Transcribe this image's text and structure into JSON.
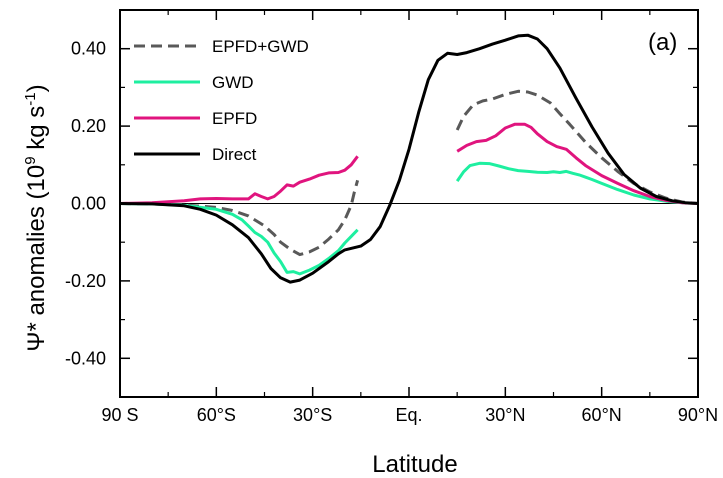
{
  "chart_data": {
    "type": "line",
    "panel_label": "(a)",
    "xlabel": "Latitude",
    "ylabel": "Ψ* anomalies (10⁹ kg s⁻¹)",
    "ylabel_main": "Ψ* anomalies (10",
    "ylabel_exp1": "9",
    "ylabel_unit": " kg s",
    "ylabel_exp2": "-1",
    "ylabel_close": ")",
    "xlim": [
      -90,
      90
    ],
    "ylim": [
      -0.5,
      0.5
    ],
    "x_ticks": [
      {
        "value": -90,
        "label": "90  S"
      },
      {
        "value": -60,
        "label": "60°S"
      },
      {
        "value": -30,
        "label": "30°S"
      },
      {
        "value": 0,
        "label": "Eq."
      },
      {
        "value": 30,
        "label": "30°N"
      },
      {
        "value": 60,
        "label": "60°N"
      },
      {
        "value": 90,
        "label": "90°N"
      }
    ],
    "y_ticks": [
      {
        "value": 0.4,
        "label": "0.40"
      },
      {
        "value": 0.2,
        "label": "0.20"
      },
      {
        "value": 0.0,
        "label": "0.00"
      },
      {
        "value": -0.2,
        "label": "-0.20"
      },
      {
        "value": -0.4,
        "label": "-0.40"
      }
    ],
    "zero_line": true,
    "legend_position": "top-left",
    "series": [
      {
        "name": "EPFD+GWD",
        "color": "#595959",
        "dash": "dashed",
        "segments": [
          [
            [
              -90,
              0
            ],
            [
              -80,
              -0.001
            ],
            [
              -70,
              -0.004
            ],
            [
              -60,
              -0.01
            ],
            [
              -55,
              -0.018
            ],
            [
              -50,
              -0.032
            ],
            [
              -45,
              -0.058
            ],
            [
              -42,
              -0.08
            ],
            [
              -40,
              -0.1
            ],
            [
              -37,
              -0.118
            ],
            [
              -34,
              -0.132
            ],
            [
              -31,
              -0.125
            ],
            [
              -28,
              -0.113
            ],
            [
              -25,
              -0.092
            ],
            [
              -22,
              -0.068
            ],
            [
              -20,
              -0.042
            ],
            [
              -18,
              -0.005
            ],
            [
              -17,
              0.03
            ],
            [
              -16,
              0.06
            ]
          ],
          [
            [
              15,
              0.19
            ],
            [
              17,
              0.225
            ],
            [
              20,
              0.255
            ],
            [
              23,
              0.265
            ],
            [
              26,
              0.27
            ],
            [
              30,
              0.282
            ],
            [
              34,
              0.29
            ],
            [
              37,
              0.288
            ],
            [
              40,
              0.28
            ],
            [
              44,
              0.26
            ],
            [
              47,
              0.232
            ],
            [
              50,
              0.205
            ],
            [
              55,
              0.158
            ],
            [
              60,
              0.118
            ],
            [
              65,
              0.083
            ],
            [
              70,
              0.052
            ],
            [
              75,
              0.03
            ],
            [
              80,
              0.014
            ],
            [
              85,
              0.004
            ],
            [
              90,
              0
            ]
          ]
        ]
      },
      {
        "name": "GWD",
        "color": "#1EEFA0",
        "dash": "solid",
        "segments": [
          [
            [
              -90,
              0
            ],
            [
              -80,
              -0.001
            ],
            [
              -70,
              -0.005
            ],
            [
              -60,
              -0.015
            ],
            [
              -55,
              -0.028
            ],
            [
              -52,
              -0.042
            ],
            [
              -50,
              -0.058
            ],
            [
              -48,
              -0.075
            ],
            [
              -46,
              -0.085
            ],
            [
              -44,
              -0.1
            ],
            [
              -42,
              -0.128
            ],
            [
              -40,
              -0.15
            ],
            [
              -38,
              -0.178
            ],
            [
              -36,
              -0.176
            ],
            [
              -34,
              -0.182
            ],
            [
              -31,
              -0.172
            ],
            [
              -28,
              -0.16
            ],
            [
              -25,
              -0.142
            ],
            [
              -22,
              -0.122
            ],
            [
              -20,
              -0.102
            ],
            [
              -18,
              -0.085
            ],
            [
              -16,
              -0.068
            ]
          ],
          [
            [
              15,
              0.058
            ],
            [
              17,
              0.082
            ],
            [
              19,
              0.098
            ],
            [
              22,
              0.104
            ],
            [
              25,
              0.103
            ],
            [
              28,
              0.097
            ],
            [
              31,
              0.09
            ],
            [
              34,
              0.085
            ],
            [
              37,
              0.083
            ],
            [
              40,
              0.081
            ],
            [
              43,
              0.08
            ],
            [
              45,
              0.082
            ],
            [
              47,
              0.08
            ],
            [
              49,
              0.083
            ],
            [
              51,
              0.078
            ],
            [
              53,
              0.074
            ],
            [
              55,
              0.068
            ],
            [
              57,
              0.062
            ],
            [
              60,
              0.052
            ],
            [
              65,
              0.036
            ],
            [
              70,
              0.022
            ],
            [
              75,
              0.012
            ],
            [
              80,
              0.006
            ],
            [
              85,
              0.002
            ],
            [
              90,
              0
            ]
          ]
        ]
      },
      {
        "name": "EPFD",
        "color": "#E0147E",
        "dash": "solid",
        "segments": [
          [
            [
              -90,
              0
            ],
            [
              -80,
              0.002
            ],
            [
              -70,
              0.007
            ],
            [
              -65,
              0.012
            ],
            [
              -60,
              0.013
            ],
            [
              -55,
              0.012
            ],
            [
              -50,
              0.012
            ],
            [
              -48,
              0.025
            ],
            [
              -46,
              0.018
            ],
            [
              -44,
              0.012
            ],
            [
              -42,
              0.018
            ],
            [
              -40,
              0.032
            ],
            [
              -38,
              0.048
            ],
            [
              -36,
              0.045
            ],
            [
              -34,
              0.055
            ],
            [
              -31,
              0.063
            ],
            [
              -28,
              0.073
            ],
            [
              -25,
              0.079
            ],
            [
              -22,
              0.08
            ],
            [
              -20,
              0.086
            ],
            [
              -18,
              0.1
            ],
            [
              -16,
              0.122
            ]
          ],
          [
            [
              15,
              0.135
            ],
            [
              18,
              0.15
            ],
            [
              21,
              0.16
            ],
            [
              24,
              0.163
            ],
            [
              27,
              0.175
            ],
            [
              30,
              0.195
            ],
            [
              33,
              0.205
            ],
            [
              36,
              0.205
            ],
            [
              38,
              0.197
            ],
            [
              40,
              0.18
            ],
            [
              43,
              0.16
            ],
            [
              46,
              0.147
            ],
            [
              49,
              0.14
            ],
            [
              52,
              0.118
            ],
            [
              55,
              0.098
            ],
            [
              60,
              0.072
            ],
            [
              65,
              0.052
            ],
            [
              70,
              0.033
            ],
            [
              75,
              0.018
            ],
            [
              80,
              0.008
            ],
            [
              85,
              0.002
            ],
            [
              90,
              0
            ]
          ]
        ]
      },
      {
        "name": "Direct",
        "color": "#000000",
        "dash": "solid",
        "segments": [
          [
            [
              -90,
              0
            ],
            [
              -80,
              -0.001
            ],
            [
              -70,
              -0.006
            ],
            [
              -65,
              -0.015
            ],
            [
              -60,
              -0.03
            ],
            [
              -55,
              -0.055
            ],
            [
              -50,
              -0.088
            ],
            [
              -46,
              -0.13
            ],
            [
              -43,
              -0.168
            ],
            [
              -40,
              -0.192
            ],
            [
              -37,
              -0.203
            ],
            [
              -34,
              -0.198
            ],
            [
              -30,
              -0.18
            ],
            [
              -25,
              -0.15
            ],
            [
              -22,
              -0.13
            ],
            [
              -20,
              -0.12
            ],
            [
              -15,
              -0.11
            ],
            [
              -12,
              -0.093
            ],
            [
              -9,
              -0.06
            ],
            [
              -6,
              -0.005
            ],
            [
              -3,
              0.06
            ],
            [
              0,
              0.14
            ],
            [
              3,
              0.235
            ],
            [
              6,
              0.32
            ],
            [
              9,
              0.37
            ],
            [
              12,
              0.388
            ],
            [
              15,
              0.385
            ],
            [
              18,
              0.39
            ],
            [
              22,
              0.4
            ],
            [
              26,
              0.412
            ],
            [
              30,
              0.422
            ],
            [
              34,
              0.433
            ],
            [
              37,
              0.435
            ],
            [
              40,
              0.425
            ],
            [
              43,
              0.4
            ],
            [
              47,
              0.35
            ],
            [
              52,
              0.272
            ],
            [
              57,
              0.198
            ],
            [
              62,
              0.13
            ],
            [
              67,
              0.075
            ],
            [
              72,
              0.04
            ],
            [
              77,
              0.018
            ],
            [
              82,
              0.007
            ],
            [
              86,
              0.002
            ],
            [
              90,
              0
            ]
          ]
        ]
      }
    ]
  }
}
